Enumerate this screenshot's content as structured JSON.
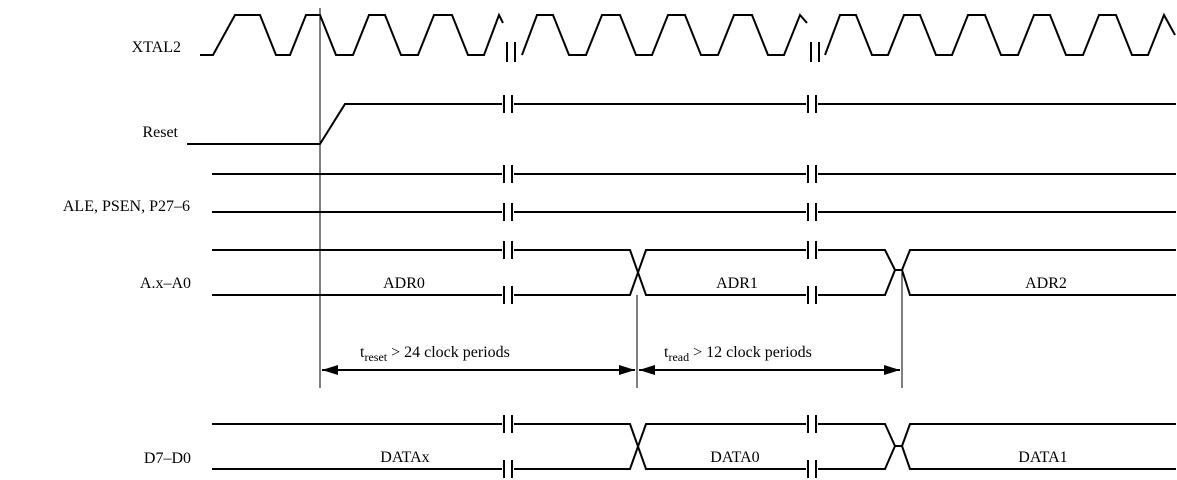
{
  "signals": {
    "xtal2": "XTAL2",
    "reset": "Reset",
    "ale": "ALE, PSEN, P27–6",
    "addr": "A.x–A0",
    "data": "D7–D0"
  },
  "bus_values": {
    "adr0": "ADR0",
    "adr1": "ADR1",
    "adr2": "ADR2",
    "datax": "DATAx",
    "data0": "DATA0",
    "data1": "DATA1"
  },
  "timing": {
    "t_reset": {
      "symbol": "t",
      "subscript": "reset",
      "text": " > 24 clock periods"
    },
    "t_read": {
      "symbol": "t",
      "subscript": "read",
      "text": " > 12 clock periods"
    }
  }
}
